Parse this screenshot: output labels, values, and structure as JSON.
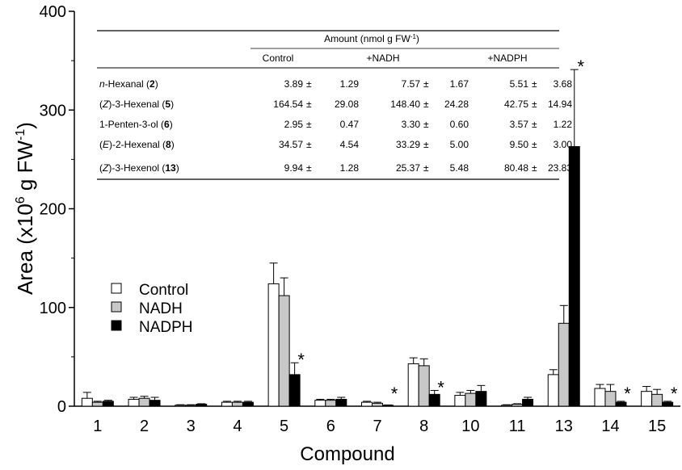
{
  "chart_data": {
    "type": "bar",
    "xlabel": "Compound",
    "ylabel_main": "Area (x10",
    "ylabel_sup1": "6",
    "ylabel_mid": " g FW",
    "ylabel_sup2": "-1",
    "ylabel_end": ")",
    "ylim": [
      0,
      400
    ],
    "yticks": [
      "0",
      "100",
      "200",
      "300",
      "400"
    ],
    "categories": [
      "1",
      "2",
      "3",
      "4",
      "5",
      "6",
      "7",
      "8",
      "10",
      "11",
      "13",
      "14",
      "15"
    ],
    "series": [
      {
        "name": "Control",
        "color": "#ffffff",
        "values": [
          8,
          7,
          1,
          4,
          124,
          6,
          4,
          43,
          11,
          1,
          32,
          18,
          15
        ],
        "errors": [
          6,
          2,
          0.5,
          1,
          21,
          1,
          1,
          6,
          3,
          0.5,
          5,
          4,
          5
        ]
      },
      {
        "name": "NADH",
        "color": "#c8c8c8",
        "values": [
          4,
          8,
          1,
          4,
          112,
          6,
          3,
          41,
          13,
          2,
          84,
          15,
          12
        ],
        "errors": [
          1,
          2,
          0.5,
          1,
          18,
          1,
          1,
          7,
          3,
          0.5,
          18,
          7,
          5
        ]
      },
      {
        "name": "NADPH",
        "color": "#000000",
        "values": [
          5,
          6,
          2,
          4,
          32,
          7,
          1,
          12,
          15,
          7,
          263,
          4,
          4
        ],
        "errors": [
          1,
          3,
          0.5,
          1,
          12,
          2,
          0.3,
          4,
          6,
          2,
          78,
          1,
          1
        ]
      }
    ],
    "significance": [
      {
        "category": "5",
        "series": "NADPH",
        "symbol": "*"
      },
      {
        "category": "7",
        "series": "NADPH",
        "symbol": "*"
      },
      {
        "category": "8",
        "series": "NADPH",
        "symbol": "*"
      },
      {
        "category": "13",
        "series": "NADPH",
        "symbol": "*"
      },
      {
        "category": "14",
        "series": "NADPH",
        "symbol": "*"
      },
      {
        "category": "15",
        "series": "NADPH",
        "symbol": "*"
      }
    ],
    "legend": {
      "position": "left-middle",
      "entries": [
        "Control",
        "NADH",
        "NADPH"
      ]
    },
    "grid": false,
    "inset_table": {
      "header_prefix": "Amount (nmol g FW",
      "header_sup": "-1",
      "header_suffix": ")",
      "columns": [
        "Control",
        "+NADH",
        "+NADPH"
      ],
      "pm": "±",
      "rows": [
        {
          "label_pre": "",
          "label_ital": "n",
          "label_post": "-Hexanal (",
          "num": "2",
          "close": ")",
          "values": [
            "3.89",
            "1.29",
            "7.57",
            "1.67",
            "5.51",
            "3.68"
          ]
        },
        {
          "label_pre": "(",
          "label_ital": "Z",
          "label_post": ")-3-Hexenal (",
          "num": "5",
          "close": ")",
          "values": [
            "164.54",
            "29.08",
            "148.40",
            "24.28",
            "42.75",
            "14.94"
          ]
        },
        {
          "label_pre": "",
          "label_ital": "",
          "label_post": "1-Penten-3-ol (",
          "num": "6",
          "close": ")",
          "values": [
            "2.95",
            "0.47",
            "3.30",
            "0.60",
            "3.57",
            "1.22"
          ]
        },
        {
          "label_pre": "(",
          "label_ital": "E",
          "label_post": ")-2-Hexenal (",
          "num": "8",
          "close": ")",
          "values": [
            "34.57",
            "4.54",
            "33.29",
            "5.00",
            "9.50",
            "3.00"
          ]
        },
        {
          "label_pre": "(",
          "label_ital": "Z",
          "label_post": ")-3-Hexenol (",
          "num": "13",
          "close": ")",
          "values": [
            "9.94",
            "1.28",
            "25.37",
            "5.48",
            "80.48",
            "23.83"
          ]
        }
      ]
    }
  }
}
